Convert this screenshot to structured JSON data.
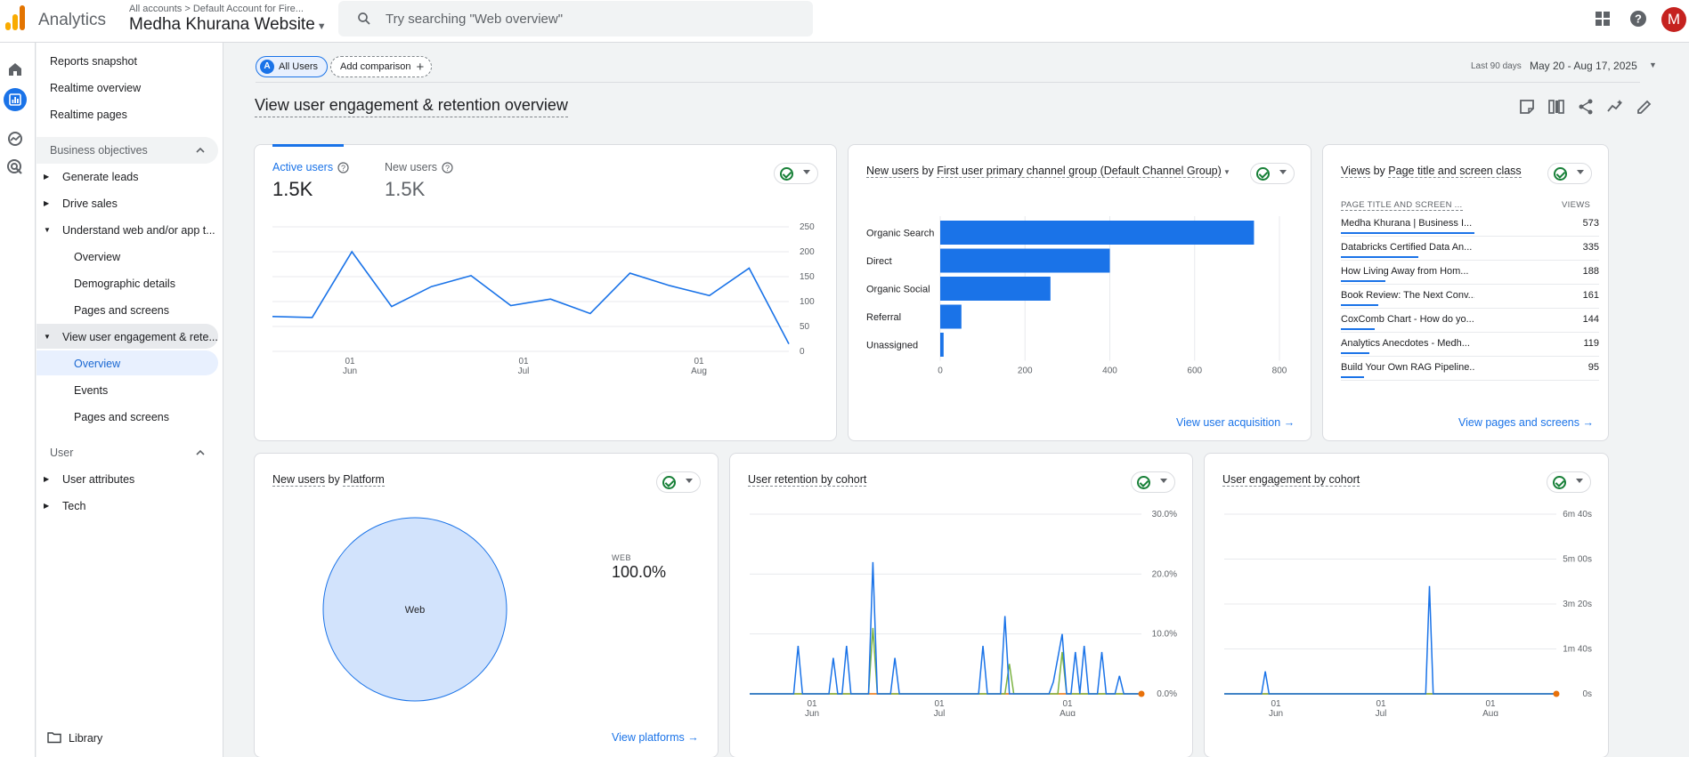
{
  "header": {
    "app_name": "Analytics",
    "account_crumb": "All accounts > Default Account for Fire...",
    "property_name": "Medha Khurana Website",
    "search_placeholder": "Try searching \"Web overview\"",
    "avatar_letter": "M",
    "icons": [
      "apps-grid-icon",
      "help-icon"
    ]
  },
  "rail": {
    "icons": [
      "home-icon",
      "reports-icon",
      "explore-icon",
      "advertising-icon"
    ],
    "active": "reports-icon"
  },
  "nav": {
    "reports_snapshot": "Reports snapshot",
    "realtime_overview": "Realtime overview",
    "realtime_pages": "Realtime pages",
    "section_business": "Business objectives",
    "generate_leads": "Generate leads",
    "drive_sales": "Drive sales",
    "understand": "Understand web and/or app t...",
    "understand_overview": "Overview",
    "demographic": "Demographic details",
    "pages_screens_1": "Pages and screens",
    "engagement": "View user engagement & rete...",
    "engagement_overview": "Overview",
    "events": "Events",
    "pages_screens_2": "Pages and screens",
    "section_user": "User",
    "user_attributes": "User attributes",
    "tech": "Tech",
    "library": "Library"
  },
  "toolbar": {
    "all_users": "All Users",
    "all_users_badge": "A",
    "add_comparison": "Add comparison",
    "date_label": "Last 90 days",
    "date_range": "May 20 - Aug 17, 2025",
    "page_title": "View user engagement & retention overview",
    "tool_icons": [
      "customize-report-icon",
      "compare-icon",
      "share-icon",
      "insights-icon",
      "edit-icon"
    ]
  },
  "card_users": {
    "active_label": "Active users",
    "active_value": "1.5K",
    "new_label": "New users",
    "new_value": "1.5K",
    "y_ticks": [
      "250",
      "200",
      "150",
      "100",
      "50",
      "0"
    ],
    "x_ticks": [
      [
        "01",
        "Jun"
      ],
      [
        "01",
        "Jul"
      ],
      [
        "01",
        "Aug"
      ]
    ]
  },
  "card_channels": {
    "title_a": "New users",
    "title_by": " by ",
    "title_b": "First user primary channel group (Default Channel Group)",
    "link": "View user acquisition"
  },
  "card_pages": {
    "title_a": "Views",
    "title_by": " by ",
    "title_b": "Page title and screen class",
    "col_name": "PAGE TITLE AND SCREEN ...",
    "col_views": "VIEWS",
    "rows": [
      {
        "name": "Medha Khurana | Business I...",
        "views": "573",
        "frac": 1.0
      },
      {
        "name": "Databricks Certified Data An...",
        "views": "335",
        "frac": 0.58
      },
      {
        "name": "How Living Away from Hom...",
        "views": "188",
        "frac": 0.33
      },
      {
        "name": "Book Review: The Next Conv...",
        "views": "161",
        "frac": 0.28
      },
      {
        "name": "CoxComb Chart - How do yo...",
        "views": "144",
        "frac": 0.25
      },
      {
        "name": "Analytics Anecdotes - Medh...",
        "views": "119",
        "frac": 0.21
      },
      {
        "name": "Build Your Own RAG Pipeline...",
        "views": "95",
        "frac": 0.17
      }
    ],
    "link": "View pages and screens"
  },
  "card_platform": {
    "title_a": "New users",
    "title_by": " by ",
    "title_b": "Platform",
    "legend_label": "WEB",
    "legend_value": "100.0%",
    "slice_label": "Web",
    "link": "View platforms"
  },
  "card_retention": {
    "title": "User retention by cohort",
    "y_ticks": [
      "30.0%",
      "20.0%",
      "10.0%",
      "0.0%"
    ],
    "x_ticks": [
      [
        "01",
        "Jun"
      ],
      [
        "01",
        "Jul"
      ],
      [
        "01",
        "Aug"
      ]
    ]
  },
  "card_engagement": {
    "title": "User engagement by cohort",
    "y_ticks": [
      "6m 40s",
      "5m 00s",
      "3m 20s",
      "1m 40s",
      "0s"
    ],
    "x_ticks": [
      [
        "01",
        "Jun"
      ],
      [
        "01",
        "Jul"
      ],
      [
        "01",
        "Aug"
      ]
    ]
  },
  "colors": {
    "accent": "#1a73e8",
    "series_blue": "#1a73e8",
    "series_green": "#7cb342",
    "series_orange": "#e8710a",
    "pie_fill": "#d2e3fc"
  },
  "chart_data": [
    {
      "type": "line",
      "title": "Active users",
      "x": [
        "May 20",
        "May 27",
        "Jun 3",
        "Jun 10",
        "Jun 17",
        "Jun 24",
        "Jul 1",
        "Jul 8",
        "Jul 15",
        "Jul 22",
        "Jul 29",
        "Aug 5",
        "Aug 12",
        "Aug 17"
      ],
      "series": [
        {
          "name": "Active users",
          "values": [
            70,
            68,
            200,
            90,
            130,
            152,
            92,
            105,
            76,
            157,
            132,
            112,
            167,
            15
          ]
        }
      ],
      "ylim": [
        0,
        250
      ]
    },
    {
      "type": "bar",
      "title": "New users by First user primary channel group (Default Channel Group)",
      "categories": [
        "Organic Search",
        "Direct",
        "Organic Social",
        "Referral",
        "Unassigned"
      ],
      "values": [
        740,
        400,
        260,
        50,
        8
      ],
      "xlim": [
        0,
        800
      ],
      "x_ticks": [
        "0",
        "200",
        "400",
        "600",
        "800"
      ]
    },
    {
      "type": "pie",
      "title": "New users by Platform",
      "categories": [
        "Web"
      ],
      "values": [
        100.0
      ]
    },
    {
      "type": "line",
      "title": "User retention by cohort",
      "ylim": [
        0,
        30
      ],
      "series": [
        {
          "name": "blue",
          "color": "#1a73e8",
          "values": [
            0,
            0,
            0,
            0,
            0,
            0,
            0,
            0,
            0,
            0,
            0,
            8,
            0,
            0,
            0,
            0,
            0,
            0,
            0,
            6,
            0,
            0,
            8,
            0,
            0,
            0,
            0,
            0,
            22,
            0,
            0,
            0,
            0,
            6,
            0,
            0,
            0,
            0,
            0,
            0,
            0,
            0,
            0,
            0,
            0,
            0,
            0,
            0,
            0,
            0,
            0,
            0,
            0,
            8,
            0,
            0,
            0,
            0,
            13,
            0,
            0,
            0,
            0,
            0,
            0,
            0,
            0,
            0,
            0,
            2,
            6,
            10,
            0,
            0,
            7,
            0,
            8,
            0,
            0,
            0,
            7,
            0,
            0,
            0,
            3,
            0,
            0,
            0,
            0,
            0
          ]
        },
        {
          "name": "green",
          "color": "#7cb342",
          "values": [
            0,
            0,
            0,
            0,
            0,
            0,
            0,
            0,
            0,
            0,
            0,
            0,
            0,
            0,
            0,
            0,
            0,
            0,
            0,
            0,
            0,
            0,
            0,
            0,
            0,
            0,
            0,
            0,
            11,
            0,
            0,
            0,
            0,
            0,
            0,
            0,
            0,
            0,
            0,
            0,
            0,
            0,
            0,
            0,
            0,
            0,
            0,
            0,
            0,
            0,
            0,
            0,
            0,
            0,
            0,
            0,
            0,
            0,
            0,
            5,
            0,
            0,
            0,
            0,
            0,
            0,
            0,
            0,
            0,
            0,
            0,
            7,
            0,
            0,
            0,
            0,
            0,
            0,
            0,
            0,
            0,
            0,
            0,
            0,
            0,
            0,
            0,
            0,
            0,
            0
          ]
        },
        {
          "name": "orange",
          "color": "#e8710a",
          "values": [
            0,
            0,
            0,
            0,
            0,
            0,
            0,
            0,
            0,
            0,
            0,
            0,
            0,
            0,
            0,
            0,
            0,
            0,
            0,
            0,
            0,
            0,
            0,
            0,
            0,
            0,
            0,
            0,
            0,
            0,
            0,
            0,
            0,
            0,
            0,
            0,
            0,
            0,
            0,
            0,
            0,
            0,
            0,
            0,
            0,
            0,
            0,
            0,
            0,
            0,
            0,
            0,
            0,
            0,
            0,
            0,
            0,
            0,
            0,
            0,
            0,
            0,
            0,
            0,
            0,
            0,
            0,
            0,
            0,
            0,
            0,
            0,
            0,
            0,
            0,
            0,
            0,
            0,
            0,
            0,
            0,
            0,
            0,
            0,
            0,
            0,
            0,
            0,
            0,
            0
          ]
        }
      ]
    },
    {
      "type": "line",
      "title": "User engagement by cohort",
      "ylim": [
        0,
        400
      ],
      "series": [
        {
          "name": "blue",
          "color": "#1a73e8",
          "values": [
            0,
            0,
            0,
            0,
            0,
            0,
            0,
            0,
            0,
            0,
            0,
            50,
            0,
            0,
            0,
            0,
            0,
            0,
            0,
            0,
            0,
            0,
            0,
            0,
            0,
            0,
            0,
            0,
            0,
            0,
            0,
            0,
            0,
            0,
            0,
            0,
            0,
            0,
            0,
            0,
            0,
            0,
            0,
            0,
            0,
            0,
            0,
            0,
            0,
            0,
            0,
            0,
            0,
            0,
            0,
            240,
            0,
            0,
            0,
            0,
            0,
            0,
            0,
            0,
            0,
            0,
            0,
            0,
            0,
            0,
            0,
            0,
            0,
            0,
            0,
            0,
            0,
            0,
            0,
            0,
            0,
            0,
            0,
            0,
            0,
            0,
            0,
            0,
            0,
            0
          ]
        },
        {
          "name": "green",
          "color": "#7cb342",
          "values": [
            0,
            0,
            0,
            0,
            0,
            0,
            0,
            0,
            0,
            0,
            0,
            0,
            0,
            0,
            0,
            0,
            0,
            0,
            0,
            0,
            0,
            0,
            0,
            0,
            0,
            0,
            0,
            0,
            0,
            0,
            0,
            0,
            0,
            0,
            0,
            0,
            0,
            0,
            0,
            0,
            0,
            0,
            0,
            0,
            0,
            0,
            0,
            0,
            0,
            0,
            0,
            0,
            0,
            0,
            0,
            0,
            0,
            0,
            0,
            0,
            0,
            0,
            0,
            0,
            0,
            0,
            0,
            0,
            0,
            0,
            0,
            0,
            0,
            0,
            0,
            0,
            0,
            0,
            0,
            0,
            0,
            0,
            0,
            0,
            0,
            0,
            0,
            0,
            0,
            0
          ]
        },
        {
          "name": "orange",
          "color": "#e8710a",
          "values": [
            0,
            0,
            0,
            0,
            0,
            0,
            0,
            0,
            0,
            0,
            0,
            0,
            0,
            0,
            0,
            0,
            0,
            0,
            0,
            0,
            0,
            0,
            0,
            0,
            0,
            0,
            0,
            0,
            0,
            0,
            0,
            0,
            0,
            0,
            0,
            0,
            0,
            0,
            0,
            0,
            0,
            0,
            0,
            0,
            0,
            0,
            0,
            0,
            0,
            0,
            0,
            0,
            0,
            0,
            0,
            0,
            0,
            0,
            0,
            0,
            0,
            0,
            0,
            0,
            0,
            0,
            0,
            0,
            0,
            0,
            0,
            0,
            0,
            0,
            0,
            0,
            0,
            0,
            0,
            0,
            0,
            0,
            0,
            0,
            0,
            0,
            0,
            0,
            0,
            0
          ]
        }
      ]
    }
  ]
}
